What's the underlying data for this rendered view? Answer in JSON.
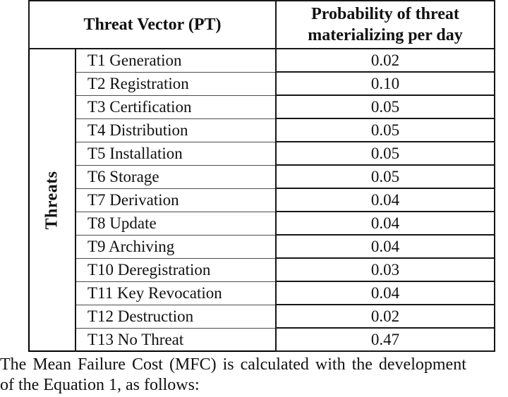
{
  "table": {
    "header": {
      "col1": "Threat Vector (PT)",
      "col2_line1": "Probability of threat",
      "col2_line2": "materializing per day"
    },
    "side_label": "Threats",
    "rows": [
      {
        "name": "T1 Generation",
        "value": "0.02"
      },
      {
        "name": "T2 Registration",
        "value": "0.10"
      },
      {
        "name": "T3 Certification",
        "value": "0.05"
      },
      {
        "name": "T4 Distribution",
        "value": "0.05"
      },
      {
        "name": "T5 Installation",
        "value": "0.05"
      },
      {
        "name": "T6 Storage",
        "value": "0.05"
      },
      {
        "name": "T7 Derivation",
        "value": "0.04"
      },
      {
        "name": "T8 Update",
        "value": "0.04"
      },
      {
        "name": "T9 Archiving",
        "value": "0.04"
      },
      {
        "name": "T10 Deregistration",
        "value": "0.03"
      },
      {
        "name": "T11 Key Revocation",
        "value": "0.04"
      },
      {
        "name": "T12 Destruction",
        "value": "0.02"
      },
      {
        "name": "T13 No Threat",
        "value": "0.47"
      }
    ]
  },
  "caption": {
    "line1": "The Mean Failure Cost (MFC) is calculated with the development",
    "line2": "of the Equation 1, as follows:"
  },
  "colors": {
    "background": "#ffffff",
    "text": "#111111",
    "border": "#161616"
  }
}
